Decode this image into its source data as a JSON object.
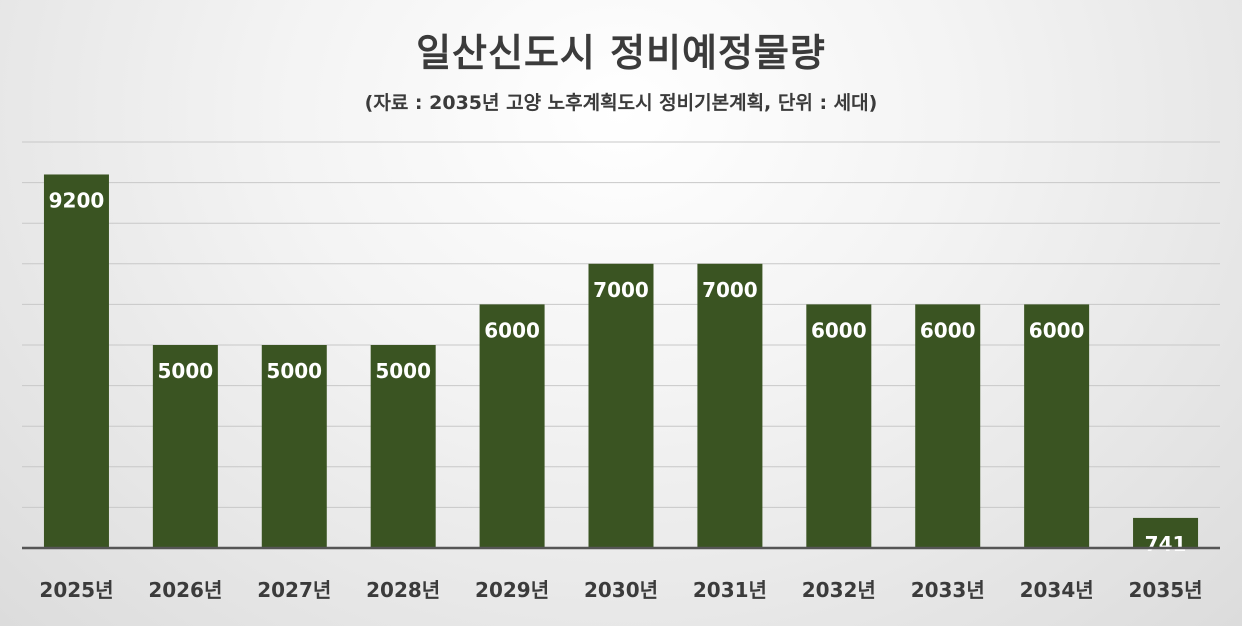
{
  "colors": {
    "bar": "#3a5422",
    "grid": "#c8c8c8",
    "axis": "#555555",
    "label": "#ffffff",
    "tick": "#3b3b3b"
  },
  "chart_data": {
    "type": "bar",
    "title": "일산신도시 정비예정물량",
    "subtitle": "(자료 : 2035년 고양 노후계획도시 정비기본계획, 단위 : 세대)",
    "categories": [
      "2025년",
      "2026년",
      "2027년",
      "2028년",
      "2029년",
      "2030년",
      "2031년",
      "2032년",
      "2033년",
      "2034년",
      "2035년"
    ],
    "values": [
      9200,
      5000,
      5000,
      5000,
      6000,
      7000,
      7000,
      6000,
      6000,
      6000,
      741
    ],
    "ylim": [
      0,
      10000
    ],
    "grid": true,
    "xlabel": "",
    "ylabel": ""
  }
}
